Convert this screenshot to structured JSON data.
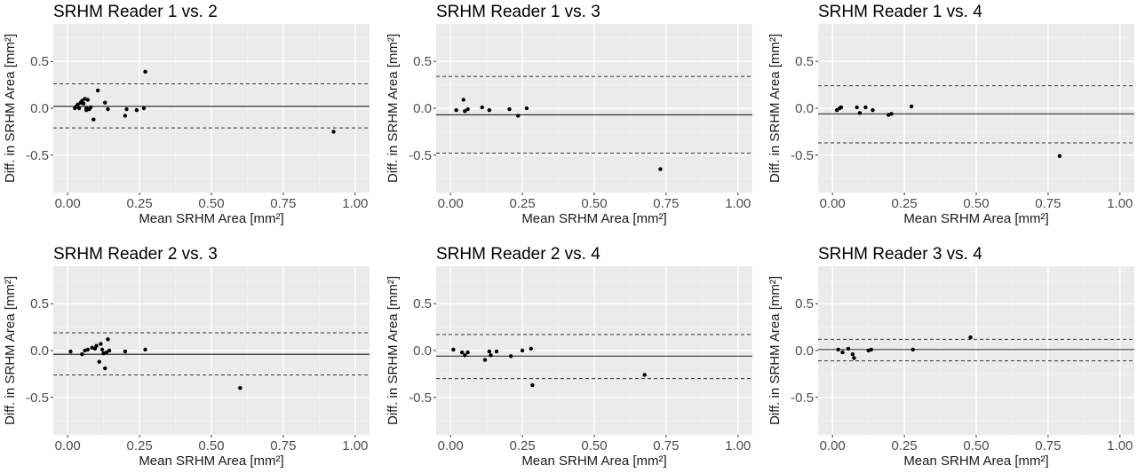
{
  "figure": {
    "background": "#ffffff"
  },
  "style": {
    "panel_bg": "#ebebeb",
    "grid_major": "#ffffff",
    "grid_minor": "#f4f4f4",
    "point_color": "#000000",
    "line_color": "#333333"
  },
  "chart_data": [
    {
      "type": "scatter",
      "title": "SRHM Reader 1 vs. 2",
      "xlabel": "Mean SRHM Area [mm²]",
      "ylabel": "Diff. in SRHM Area [mm²]",
      "xlim": [
        -0.05,
        1.05
      ],
      "ylim": [
        -0.9,
        0.9
      ],
      "xticks": [
        "0.00",
        "0.25",
        "0.50",
        "0.75",
        "1.00"
      ],
      "yticks": [
        "-0.5",
        "0.0",
        "0.5"
      ],
      "mean_line": 0.02,
      "loa_upper": 0.26,
      "loa_lower": -0.21,
      "x": [
        0.025,
        0.03,
        0.035,
        0.04,
        0.045,
        0.05,
        0.055,
        0.06,
        0.065,
        0.065,
        0.07,
        0.075,
        0.08,
        0.09,
        0.105,
        0.13,
        0.14,
        0.2,
        0.205,
        0.24,
        0.265,
        0.27,
        0.925
      ],
      "y": [
        0.0,
        0.02,
        0.04,
        0.0,
        0.06,
        0.08,
        0.05,
        0.1,
        0.0,
        -0.02,
        0.09,
        -0.01,
        0.01,
        -0.12,
        0.19,
        0.06,
        -0.01,
        -0.08,
        -0.01,
        -0.02,
        0.0,
        0.39,
        -0.25
      ]
    },
    {
      "type": "scatter",
      "title": "SRHM Reader 1 vs. 3",
      "xlabel": "Mean SRHM Area [mm²]",
      "ylabel": "Diff. in SRHM Area [mm²]",
      "xlim": [
        -0.05,
        1.05
      ],
      "ylim": [
        -0.9,
        0.9
      ],
      "xticks": [
        "0.00",
        "0.25",
        "0.50",
        "0.75",
        "1.00"
      ],
      "yticks": [
        "-0.5",
        "0.0",
        "0.5"
      ],
      "mean_line": -0.07,
      "loa_upper": 0.34,
      "loa_lower": -0.48,
      "x": [
        0.02,
        0.045,
        0.05,
        0.06,
        0.11,
        0.135,
        0.205,
        0.235,
        0.265,
        0.73
      ],
      "y": [
        -0.02,
        0.09,
        -0.03,
        -0.01,
        0.01,
        -0.02,
        -0.01,
        -0.08,
        0.0,
        -0.65
      ]
    },
    {
      "type": "scatter",
      "title": "SRHM Reader 1 vs. 4",
      "xlabel": "Mean SRHM Area [mm²]",
      "ylabel": "Diff. in SRHM Area [mm²]",
      "xlim": [
        -0.05,
        1.05
      ],
      "ylim": [
        -0.9,
        0.9
      ],
      "xticks": [
        "0.00",
        "0.25",
        "0.50",
        "0.75",
        "1.00"
      ],
      "yticks": [
        "-0.5",
        "0.0",
        "0.5"
      ],
      "mean_line": -0.06,
      "loa_upper": 0.24,
      "loa_lower": -0.37,
      "x": [
        0.015,
        0.025,
        0.03,
        0.085,
        0.095,
        0.115,
        0.14,
        0.195,
        0.205,
        0.275,
        0.79
      ],
      "y": [
        -0.02,
        0.0,
        0.01,
        0.01,
        -0.05,
        0.01,
        -0.02,
        -0.07,
        -0.06,
        0.02,
        -0.51
      ]
    },
    {
      "type": "scatter",
      "title": "SRHM Reader 2 vs. 3",
      "xlabel": "Mean SRHM Area [mm²]",
      "ylabel": "Diff. in SRHM Area [mm²]",
      "xlim": [
        -0.05,
        1.05
      ],
      "ylim": [
        -0.9,
        0.9
      ],
      "xticks": [
        "0.00",
        "0.25",
        "0.50",
        "0.75",
        "1.00"
      ],
      "yticks": [
        "-0.5",
        "0.0",
        "0.5"
      ],
      "mean_line": -0.04,
      "loa_upper": 0.19,
      "loa_lower": -0.26,
      "x": [
        0.01,
        0.05,
        0.06,
        0.07,
        0.085,
        0.095,
        0.1,
        0.11,
        0.115,
        0.12,
        0.125,
        0.13,
        0.135,
        0.14,
        0.145,
        0.2,
        0.27,
        0.6
      ],
      "y": [
        -0.01,
        -0.04,
        0.0,
        0.01,
        0.03,
        0.02,
        0.05,
        -0.12,
        0.07,
        0.01,
        -0.03,
        -0.19,
        -0.02,
        0.12,
        0.0,
        -0.01,
        0.01,
        -0.4
      ]
    },
    {
      "type": "scatter",
      "title": "SRHM Reader 2 vs. 4",
      "xlabel": "Mean SRHM Area [mm²]",
      "ylabel": "Diff. in SRHM Area [mm²]",
      "xlim": [
        -0.05,
        1.05
      ],
      "ylim": [
        -0.9,
        0.9
      ],
      "xticks": [
        "0.00",
        "0.25",
        "0.50",
        "0.75",
        "1.00"
      ],
      "yticks": [
        "-0.5",
        "0.0",
        "0.5"
      ],
      "mean_line": -0.06,
      "loa_upper": 0.17,
      "loa_lower": -0.3,
      "x": [
        0.01,
        0.04,
        0.05,
        0.06,
        0.12,
        0.135,
        0.14,
        0.16,
        0.21,
        0.25,
        0.28,
        0.285,
        0.675
      ],
      "y": [
        0.01,
        -0.02,
        -0.05,
        -0.02,
        -0.1,
        -0.01,
        -0.05,
        -0.01,
        -0.06,
        0.0,
        0.02,
        -0.37,
        -0.26
      ]
    },
    {
      "type": "scatter",
      "title": "SRHM Reader 3 vs. 4",
      "xlabel": "Mean SRHM Area [mm²]",
      "ylabel": "Diff. in SRHM Area [mm²]",
      "xlim": [
        -0.05,
        1.05
      ],
      "ylim": [
        -0.9,
        0.9
      ],
      "xticks": [
        "0.00",
        "0.25",
        "0.50",
        "0.75",
        "1.00"
      ],
      "yticks": [
        "-0.5",
        "0.0",
        "0.5"
      ],
      "mean_line": 0.01,
      "loa_upper": 0.12,
      "loa_lower": -0.11,
      "x": [
        0.02,
        0.035,
        0.055,
        0.07,
        0.075,
        0.125,
        0.135,
        0.28,
        0.48
      ],
      "y": [
        0.01,
        -0.02,
        0.02,
        -0.04,
        -0.08,
        0.0,
        0.01,
        0.01,
        0.14
      ]
    }
  ]
}
